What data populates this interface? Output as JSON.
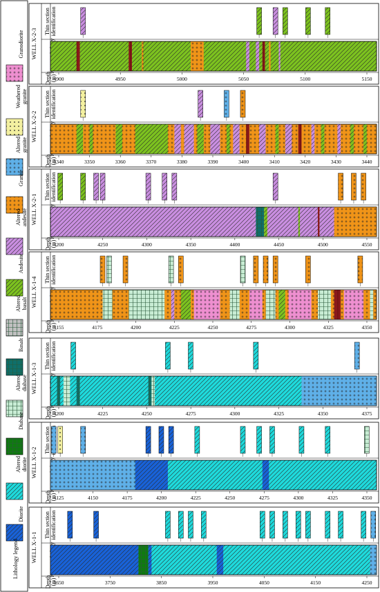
{
  "legend": {
    "title": "Lithology legend",
    "items": [
      {
        "label": "Granodiorite",
        "key": "granodiorite"
      },
      {
        "label": "Weathered granite",
        "key": "weathered"
      },
      {
        "label": "Altered granite",
        "key": "altgranite"
      },
      {
        "label": "Granite",
        "key": "granite"
      },
      {
        "label": "Altered andesite",
        "key": "altandesite"
      },
      {
        "label": "Andesite",
        "key": "andesite"
      },
      {
        "label": "Altered basalt",
        "key": "altbasalt"
      },
      {
        "label": "Basalt",
        "key": "basalt"
      },
      {
        "label": "Altered diabase",
        "key": "altdiabase"
      },
      {
        "label": "Diabase",
        "key": "diabase"
      },
      {
        "label": "Altered diorite",
        "key": "altdiorite"
      },
      {
        "label": "Diorite",
        "key": "diorite"
      }
    ]
  },
  "colors": {
    "granodiorite": "#ee8fd0",
    "weathered": "#f3f0a0",
    "altgranite": "#5fb0e8",
    "granite": "#f09418",
    "altandesite": "#c98ee0",
    "andesite": "#7cc21f",
    "altbasalt": "#c0c0c0",
    "basalt": "#0f6f6a",
    "altdiabase": "#c8ecd4",
    "diabase": "#107a10",
    "altdiorite": "#1edadc",
    "diorite": "#1862d8",
    "darkline": "#8a1a1a"
  },
  "row_labels": {
    "thin": "Thin section identification",
    "knn": "KNN Lithology",
    "depth": "Depth (m)"
  },
  "wells": [
    {
      "name": "WELL X-2-3",
      "ticks": [
        "4900",
        "4950",
        "5000",
        "5050",
        "5100",
        "5150"
      ],
      "base": "andesite",
      "segments": [
        {
          "s": 0.43,
          "e": 0.47,
          "l": "granite"
        },
        {
          "s": 0.08,
          "e": 0.09,
          "l": "darkline"
        },
        {
          "s": 0.24,
          "e": 0.25,
          "l": "darkline"
        },
        {
          "s": 0.28,
          "e": 0.285,
          "l": "granite"
        },
        {
          "s": 0.6,
          "e": 0.61,
          "l": "altandesite"
        },
        {
          "s": 0.63,
          "e": 0.64,
          "l": "altandesite"
        },
        {
          "s": 0.65,
          "e": 0.658,
          "l": "darkline"
        },
        {
          "s": 0.67,
          "e": 0.675,
          "l": "granite"
        },
        {
          "s": 0.7,
          "e": 0.705,
          "l": "altandesite"
        }
      ],
      "cores": [
        {
          "p": 0.1,
          "l": "altandesite"
        },
        {
          "p": 0.64,
          "l": "andesite"
        },
        {
          "p": 0.69,
          "l": "altandesite"
        },
        {
          "p": 0.72,
          "l": "andesite"
        },
        {
          "p": 0.79,
          "l": "andesite"
        },
        {
          "p": 0.85,
          "l": "andesite"
        }
      ]
    },
    {
      "name": "WELL X-2-2",
      "ticks": [
        "3340",
        "3350",
        "3360",
        "3370",
        "3380",
        "3390",
        "3400",
        "3410",
        "3420",
        "3430",
        "3440"
      ],
      "base": "granite",
      "segments": [
        {
          "s": 0.08,
          "e": 0.1,
          "l": "andesite"
        },
        {
          "s": 0.12,
          "e": 0.13,
          "l": "andesite"
        },
        {
          "s": 0.2,
          "e": 0.22,
          "l": "andesite"
        },
        {
          "s": 0.26,
          "e": 0.36,
          "l": "andesite"
        },
        {
          "s": 0.38,
          "e": 0.4,
          "l": "altandesite"
        },
        {
          "s": 0.41,
          "e": 0.44,
          "l": "altandesite"
        },
        {
          "s": 0.45,
          "e": 0.47,
          "l": "andesite"
        },
        {
          "s": 0.49,
          "e": 0.52,
          "l": "altandesite"
        },
        {
          "s": 0.54,
          "e": 0.55,
          "l": "andesite"
        },
        {
          "s": 0.56,
          "e": 0.58,
          "l": "altandesite"
        },
        {
          "s": 0.6,
          "e": 0.61,
          "l": "darkline"
        },
        {
          "s": 0.64,
          "e": 0.66,
          "l": "altandesite"
        },
        {
          "s": 0.69,
          "e": 0.7,
          "l": "andesite"
        },
        {
          "s": 0.72,
          "e": 0.74,
          "l": "altandesite"
        },
        {
          "s": 0.76,
          "e": 0.77,
          "l": "darkline"
        },
        {
          "s": 0.8,
          "e": 0.81,
          "l": "altandesite"
        },
        {
          "s": 0.83,
          "e": 0.84,
          "l": "andesite"
        },
        {
          "s": 0.88,
          "e": 0.89,
          "l": "altandesite"
        },
        {
          "s": 0.92,
          "e": 0.93,
          "l": "andesite"
        },
        {
          "s": 0.96,
          "e": 0.97,
          "l": "andesite"
        }
      ],
      "cores": [
        {
          "p": 0.1,
          "l": "weathered"
        },
        {
          "p": 0.46,
          "l": "altandesite"
        },
        {
          "p": 0.54,
          "l": "altgranite"
        },
        {
          "p": 0.59,
          "l": "granite"
        }
      ]
    },
    {
      "name": "WELL X-2-1",
      "ticks": [
        "4200",
        "4250",
        "4300",
        "4350",
        "4400",
        "4450",
        "4500",
        "4550"
      ],
      "base": "altandesite",
      "segments": [
        {
          "s": 0.63,
          "e": 0.655,
          "l": "basalt"
        },
        {
          "s": 0.655,
          "e": 0.665,
          "l": "andesite"
        },
        {
          "s": 0.76,
          "e": 0.765,
          "l": "andesite"
        },
        {
          "s": 0.82,
          "e": 0.825,
          "l": "darkline"
        },
        {
          "s": 0.87,
          "e": 1.0,
          "l": "granite"
        }
      ],
      "cores": [
        {
          "p": 0.03,
          "l": "andesite"
        },
        {
          "p": 0.1,
          "l": "andesite"
        },
        {
          "p": 0.14,
          "l": "altandesite"
        },
        {
          "p": 0.16,
          "l": "altandesite"
        },
        {
          "p": 0.3,
          "l": "altandesite"
        },
        {
          "p": 0.35,
          "l": "altandesite"
        },
        {
          "p": 0.38,
          "l": "altandesite"
        },
        {
          "p": 0.69,
          "l": "altandesite"
        },
        {
          "p": 0.89,
          "l": "granite"
        },
        {
          "p": 0.93,
          "l": "granite"
        },
        {
          "p": 0.96,
          "l": "granite"
        }
      ]
    },
    {
      "name": "WELL X-1-4",
      "ticks": [
        "4155",
        "4175",
        "4200",
        "4225",
        "4250",
        "4275",
        "4300",
        "4325",
        "4350"
      ],
      "base": "granite",
      "segments": [
        {
          "s": 0.16,
          "e": 0.19,
          "l": "altdiabase"
        },
        {
          "s": 0.24,
          "e": 0.35,
          "l": "altdiabase"
        },
        {
          "s": 0.37,
          "e": 0.38,
          "l": "altandesite"
        },
        {
          "s": 0.4,
          "e": 0.43,
          "l": "andesite"
        },
        {
          "s": 0.44,
          "e": 0.52,
          "l": "granodiorite"
        },
        {
          "s": 0.55,
          "e": 0.58,
          "l": "altdiabase"
        },
        {
          "s": 0.61,
          "e": 0.65,
          "l": "granodiorite"
        },
        {
          "s": 0.66,
          "e": 0.69,
          "l": "altdiabase"
        },
        {
          "s": 0.7,
          "e": 0.72,
          "l": "andesite"
        },
        {
          "s": 0.73,
          "e": 0.8,
          "l": "granodiorite"
        },
        {
          "s": 0.82,
          "e": 0.86,
          "l": "altdiabase"
        },
        {
          "s": 0.87,
          "e": 0.89,
          "l": "darkline"
        },
        {
          "s": 0.9,
          "e": 0.96,
          "l": "granodiorite"
        },
        {
          "s": 0.98,
          "e": 0.99,
          "l": "altdiabase"
        }
      ],
      "cores": [
        {
          "p": 0.16,
          "l": "granite"
        },
        {
          "p": 0.18,
          "l": "altdiabase"
        },
        {
          "p": 0.23,
          "l": "granite"
        },
        {
          "p": 0.37,
          "l": "altdiabase"
        },
        {
          "p": 0.4,
          "l": "granite"
        },
        {
          "p": 0.59,
          "l": "altdiabase"
        },
        {
          "p": 0.63,
          "l": "granite"
        },
        {
          "p": 0.66,
          "l": "granite"
        },
        {
          "p": 0.69,
          "l": "granite"
        },
        {
          "p": 0.79,
          "l": "granite"
        },
        {
          "p": 0.95,
          "l": "granite"
        }
      ]
    },
    {
      "name": "WELL X-1-3",
      "ticks": [
        "4200",
        "4225",
        "4250",
        "4275",
        "4300",
        "4325",
        "4350",
        "4375"
      ],
      "base": "altdiorite",
      "segments": [
        {
          "s": 0.02,
          "e": 0.03,
          "l": "basalt"
        },
        {
          "s": 0.04,
          "e": 0.06,
          "l": "altdiabase"
        },
        {
          "s": 0.08,
          "e": 0.09,
          "l": "basalt"
        },
        {
          "s": 0.3,
          "e": 0.31,
          "l": "basalt"
        },
        {
          "s": 0.31,
          "e": 0.32,
          "l": "altdiabase"
        },
        {
          "s": 0.77,
          "e": 1.0,
          "l": "altgranite"
        }
      ],
      "cores": [
        {
          "p": 0.07,
          "l": "altdiorite"
        },
        {
          "p": 0.36,
          "l": "altdiorite"
        },
        {
          "p": 0.43,
          "l": "altdiorite"
        },
        {
          "p": 0.63,
          "l": "altdiorite"
        },
        {
          "p": 0.94,
          "l": "altgranite"
        }
      ]
    },
    {
      "name": "WELL X-1-2",
      "ticks": [
        "4125",
        "4150",
        "4175",
        "4200",
        "4225",
        "4250",
        "4275",
        "4300",
        "4325",
        "4350"
      ],
      "base": "altdiorite",
      "segments": [
        {
          "s": 0.0,
          "e": 0.26,
          "l": "altgranite"
        },
        {
          "s": 0.26,
          "e": 0.36,
          "l": "diorite"
        },
        {
          "s": 0.65,
          "e": 0.67,
          "l": "diorite"
        }
      ],
      "cores": [
        {
          "p": 0.01,
          "l": "altgranite"
        },
        {
          "p": 0.03,
          "l": "weathered"
        },
        {
          "p": 0.1,
          "l": "altgranite"
        },
        {
          "p": 0.3,
          "l": "diorite"
        },
        {
          "p": 0.34,
          "l": "diorite"
        },
        {
          "p": 0.37,
          "l": "diorite"
        },
        {
          "p": 0.45,
          "l": "altdiorite"
        },
        {
          "p": 0.59,
          "l": "altdiorite"
        },
        {
          "p": 0.64,
          "l": "altdiorite"
        },
        {
          "p": 0.68,
          "l": "altdiorite"
        },
        {
          "p": 0.77,
          "l": "altdiorite"
        },
        {
          "p": 0.85,
          "l": "altdiorite"
        },
        {
          "p": 0.97,
          "l": "altdiabase"
        }
      ]
    },
    {
      "name": "WELL X-1-1",
      "ticks": [
        "3650",
        "3750",
        "3850",
        "3950",
        "4050",
        "4150",
        "4250"
      ],
      "base": "altdiorite",
      "segments": [
        {
          "s": 0.0,
          "e": 0.27,
          "l": "diorite"
        },
        {
          "s": 0.27,
          "e": 0.3,
          "l": "diabase"
        },
        {
          "s": 0.3,
          "e": 0.31,
          "l": "diorite"
        },
        {
          "s": 0.51,
          "e": 0.53,
          "l": "diorite"
        },
        {
          "s": 0.98,
          "e": 1.0,
          "l": "altgranite"
        }
      ],
      "cores": [
        {
          "p": 0.06,
          "l": "diorite"
        },
        {
          "p": 0.14,
          "l": "diorite"
        },
        {
          "p": 0.36,
          "l": "altdiorite"
        },
        {
          "p": 0.4,
          "l": "altdiorite"
        },
        {
          "p": 0.43,
          "l": "altdiorite"
        },
        {
          "p": 0.47,
          "l": "altdiorite"
        },
        {
          "p": 0.65,
          "l": "altdiorite"
        },
        {
          "p": 0.68,
          "l": "altdiorite"
        },
        {
          "p": 0.72,
          "l": "altdiorite"
        },
        {
          "p": 0.76,
          "l": "altdiorite"
        },
        {
          "p": 0.79,
          "l": "altdiorite"
        },
        {
          "p": 0.85,
          "l": "altdiorite"
        },
        {
          "p": 0.89,
          "l": "altdiorite"
        },
        {
          "p": 0.96,
          "l": "altdiorite"
        },
        {
          "p": 0.99,
          "l": "altgranite"
        }
      ]
    }
  ]
}
